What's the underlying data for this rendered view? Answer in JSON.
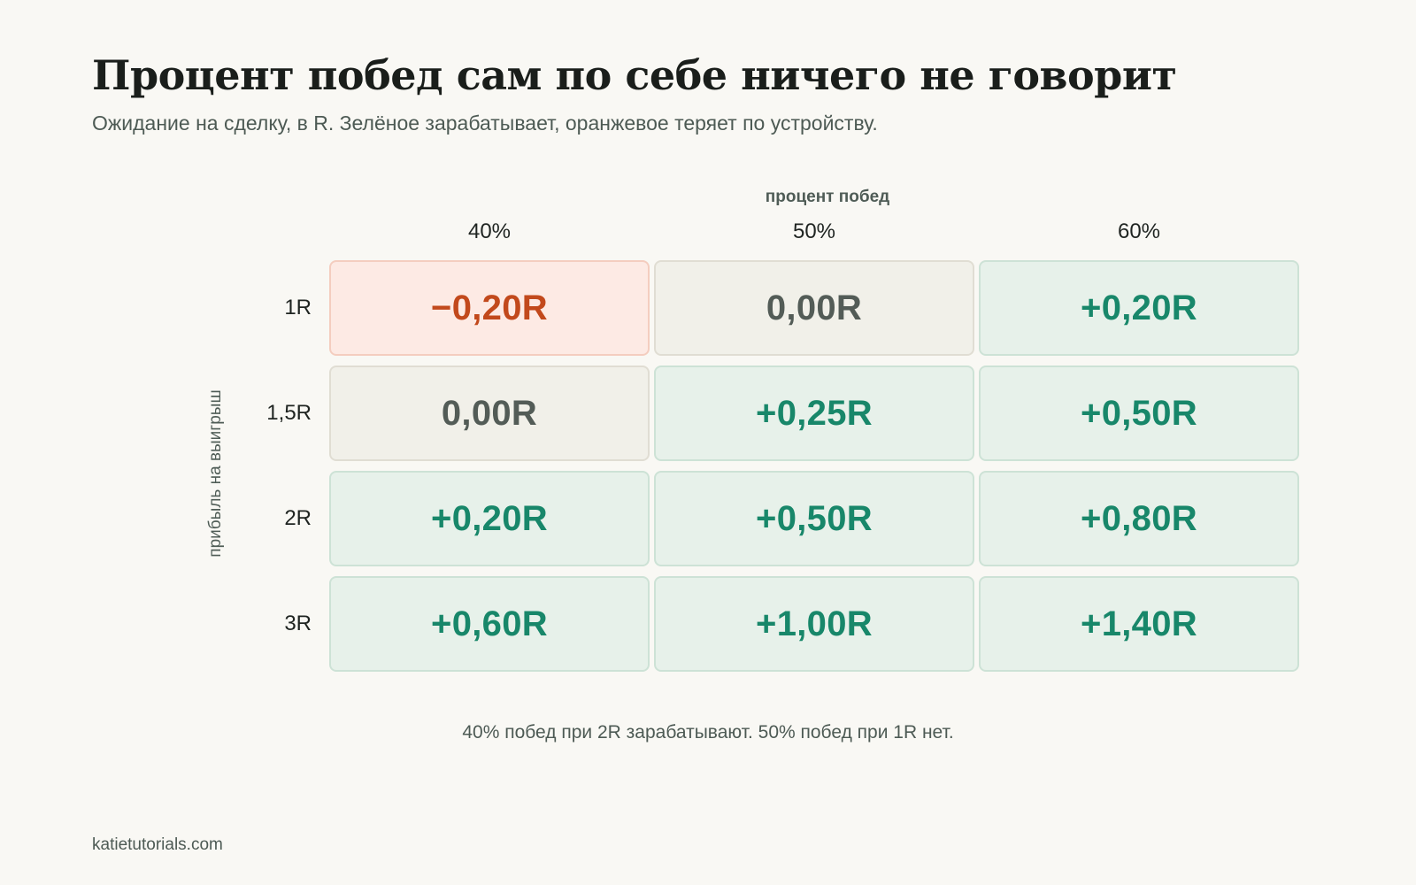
{
  "header": {
    "title": "Процент побед сам по себе ничего не говорит",
    "subtitle": "Ожидание на сделку, в R. Зелёное зарабатывает, оранжевое теряет по устройству."
  },
  "chart_data": {
    "type": "table",
    "xlabel": "процент побед",
    "ylabel": "прибыль на выигрыш",
    "columns": [
      "40%",
      "50%",
      "60%"
    ],
    "rows": [
      "1R",
      "1,5R",
      "2R",
      "3R"
    ],
    "values": [
      [
        -0.2,
        0.0,
        0.2
      ],
      [
        0.0,
        0.25,
        0.5
      ],
      [
        0.2,
        0.5,
        0.8
      ],
      [
        0.6,
        1.0,
        1.4
      ]
    ],
    "labels": [
      [
        "−0,20R",
        "0,00R",
        "+0,20R"
      ],
      [
        "0,00R",
        "+0,25R",
        "+0,50R"
      ],
      [
        "+0,20R",
        "+0,50R",
        "+0,80R"
      ],
      [
        "+0,60R",
        "+1,00R",
        "+1,40R"
      ]
    ],
    "colors": {
      "positive": "#18876a",
      "zero": "#535c57",
      "negative": "#c2491c"
    }
  },
  "note": "40% побед при 2R зарабатывают. 50% побед при 1R нет.",
  "footer": "katietutorials.com"
}
